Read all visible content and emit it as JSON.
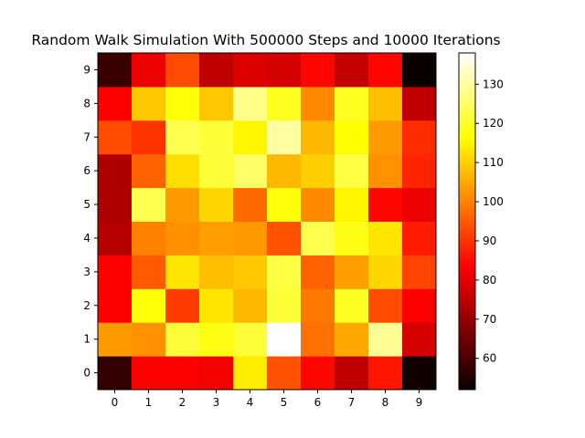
{
  "chart_data": {
    "type": "heatmap",
    "title": "Random Walk Simulation With 500000 Steps and 10000 Iterations",
    "xlabel": "",
    "ylabel": "",
    "x_categories": [
      "0",
      "1",
      "2",
      "3",
      "4",
      "5",
      "6",
      "7",
      "8",
      "9"
    ],
    "y_categories": [
      "0",
      "1",
      "2",
      "3",
      "4",
      "5",
      "6",
      "7",
      "8",
      "9"
    ],
    "y_order": "bottom-to-top",
    "colormap": "hot",
    "vmin": 52,
    "vmax": 138,
    "colorbar_ticks": [
      60,
      70,
      80,
      90,
      100,
      110,
      120,
      130
    ],
    "grid": false,
    "values": [
      [
        57,
        83,
        83,
        82,
        114,
        94,
        84,
        75,
        86,
        53
      ],
      [
        103,
        102,
        121,
        118,
        121,
        138,
        98,
        105,
        129,
        78
      ],
      [
        83,
        117,
        91,
        113,
        107,
        121,
        99,
        119,
        93,
        83
      ],
      [
        83,
        95,
        113,
        108,
        109,
        122,
        96,
        104,
        111,
        92
      ],
      [
        74,
        100,
        102,
        104,
        103,
        94,
        123,
        118,
        113,
        87
      ],
      [
        73,
        123,
        103,
        111,
        97,
        117,
        101,
        115,
        84,
        81
      ],
      [
        73,
        96,
        112,
        121,
        125,
        107,
        110,
        122,
        102,
        88
      ],
      [
        93,
        90,
        123,
        121,
        115,
        130,
        107,
        116,
        103,
        89
      ],
      [
        83,
        109,
        117,
        109,
        128,
        119,
        101,
        119,
        108,
        75
      ],
      [
        58,
        81,
        93,
        75,
        79,
        78,
        84,
        76,
        84,
        52
      ]
    ]
  }
}
